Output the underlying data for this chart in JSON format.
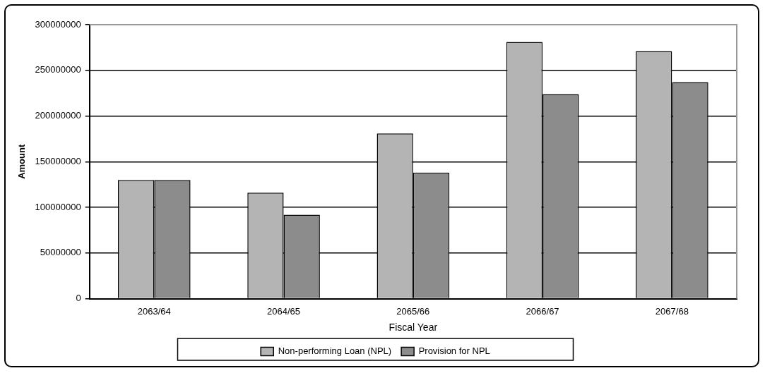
{
  "chart_data": {
    "type": "bar",
    "xlabel": "Fiscal Year",
    "ylabel": "Amount",
    "categories": [
      "2063/64",
      "2064/65",
      "2065/66",
      "2066/67",
      "2067/68"
    ],
    "series": [
      {
        "name": "Non-performing Loan (NPL)",
        "color": "#b4b4b4",
        "values": [
          130000000,
          116000000,
          181000000,
          281000000,
          271000000
        ]
      },
      {
        "name": "Provision for NPL",
        "color": "#8c8c8c",
        "values": [
          130000000,
          92000000,
          138000000,
          224000000,
          237000000
        ]
      }
    ],
    "ylim": [
      0,
      300000000
    ],
    "yticks": [
      0,
      50000000,
      100000000,
      150000000,
      200000000,
      250000000,
      300000000
    ],
    "grid": "y",
    "legend": "bottom"
  }
}
